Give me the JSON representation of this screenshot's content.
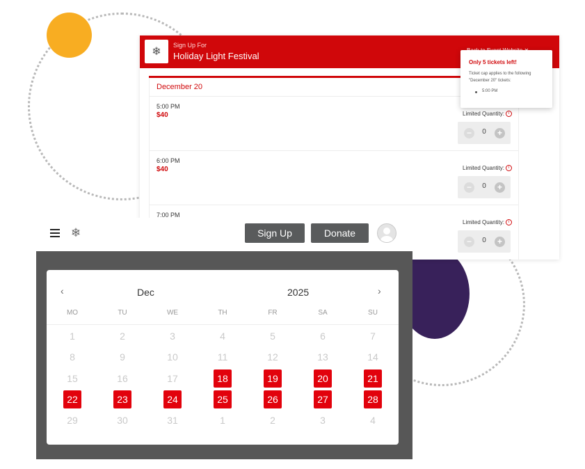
{
  "colors": {
    "accent": "#e2020c",
    "header_red": "#d0070a",
    "dark_button": "#595b5c",
    "orange": "#f8ad22",
    "purple": "#38215a",
    "frame": "#575757"
  },
  "signup": {
    "thumbnail_icon": "festive-lights-icon",
    "pre_title": "Sign Up For",
    "event_title": "Holiday Light Festival",
    "back_link": "Back to Event Website ✕",
    "date_heading": "December 20",
    "tickets": [
      {
        "time": "5:00 PM",
        "price": "$40",
        "limited": "Limited Quantity:",
        "qty": "0",
        "info_icon": "i"
      },
      {
        "time": "6:00 PM",
        "price": "$40",
        "limited": "Limited Quantity:",
        "qty": "0",
        "info_icon": "i"
      },
      {
        "time": "7:00 PM",
        "price": "",
        "limited": "Limited Quantity:",
        "qty": "0",
        "info_icon": "i"
      }
    ],
    "stepper_minus": "−",
    "stepper_plus": "+",
    "popover": {
      "title": "Only 5 tickets left!",
      "body": "Ticket cap applies to the following \"December 20\" tickets:",
      "item": "5:00 PM"
    }
  },
  "app_bar": {
    "menu_icon": "hamburger-menu-icon",
    "logo_icon": "festive-lights-logo-icon",
    "signup_label": "Sign Up",
    "donate_label": "Donate",
    "avatar_icon": "user-avatar-icon"
  },
  "calendar": {
    "prev_icon": "‹",
    "next_icon": "›",
    "month": "Dec",
    "year": "2025",
    "weekdays": [
      "MO",
      "TU",
      "WE",
      "TH",
      "FR",
      "SA",
      "SU"
    ],
    "weeks": [
      [
        "1",
        "2",
        "3",
        "4",
        "5",
        "6",
        "7"
      ],
      [
        "8",
        "9",
        "10",
        "11",
        "12",
        "13",
        "14"
      ],
      [
        "15",
        "16",
        "17",
        "18",
        "19",
        "20",
        "21"
      ],
      [
        "22",
        "23",
        "24",
        "25",
        "26",
        "27",
        "28"
      ],
      [
        "29",
        "30",
        "31",
        "1",
        "2",
        "3",
        "4"
      ]
    ],
    "available_days": [
      "18",
      "19",
      "20",
      "21",
      "22",
      "23",
      "24",
      "25",
      "26",
      "27",
      "28"
    ]
  }
}
